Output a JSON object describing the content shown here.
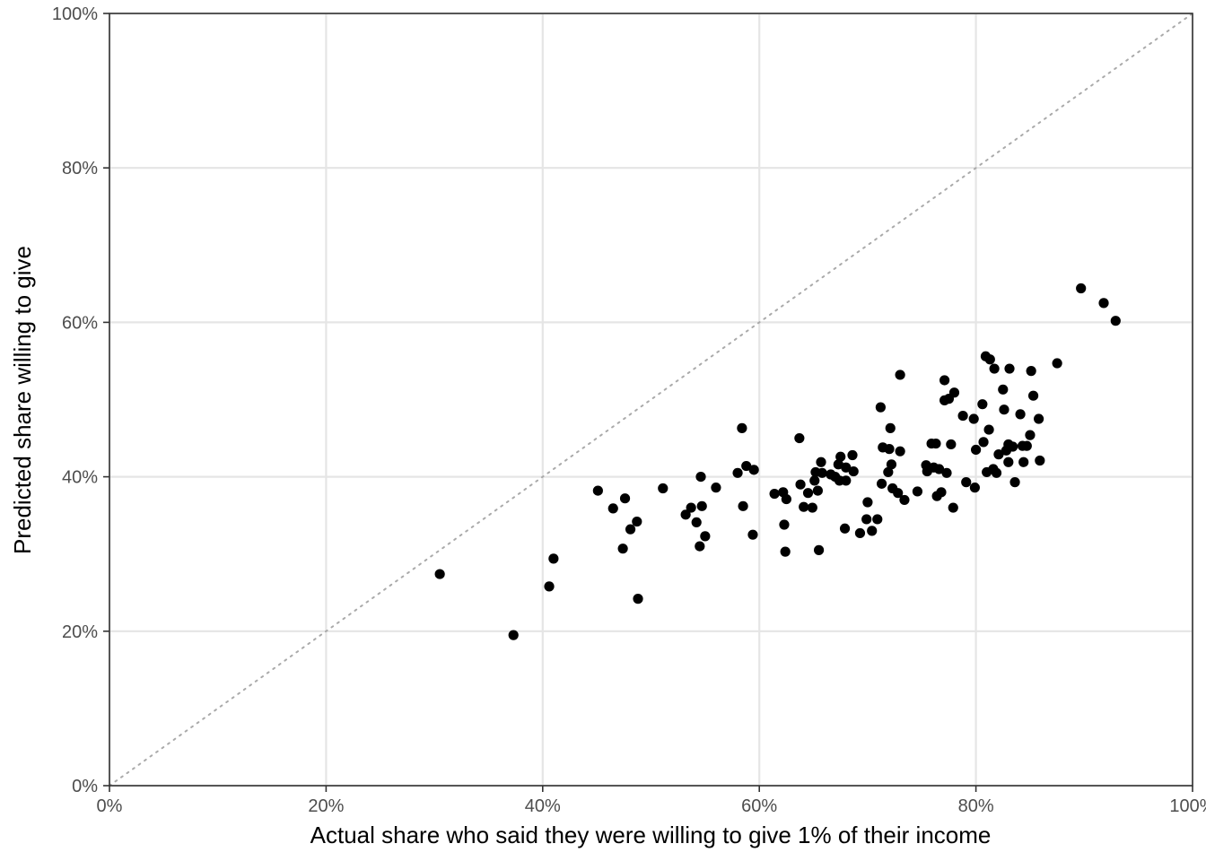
{
  "chart_data": {
    "type": "scatter",
    "xlabel": "Actual share who said they were willing to give 1% of their income",
    "ylabel": "Predicted share willing to give",
    "xlim": [
      0,
      100
    ],
    "ylim": [
      0,
      100
    ],
    "x_ticks": [
      0,
      20,
      40,
      60,
      80,
      100
    ],
    "y_ticks": [
      0,
      20,
      40,
      60,
      80,
      100
    ],
    "x_tick_labels": [
      "0%",
      "20%",
      "40%",
      "60%",
      "80%",
      "100%"
    ],
    "y_tick_labels": [
      "0%",
      "20%",
      "40%",
      "60%",
      "80%",
      "100%"
    ],
    "grid": true,
    "reference_line": {
      "type": "identity",
      "style": "dotted",
      "color": "#aaaaaa"
    },
    "point_color": "#000000",
    "series": [
      {
        "points": [
          [
            30.5,
            27.4
          ],
          [
            37.3,
            19.5
          ],
          [
            40.6,
            25.8
          ],
          [
            41.0,
            29.4
          ],
          [
            45.1,
            38.2
          ],
          [
            46.5,
            35.9
          ],
          [
            47.4,
            30.7
          ],
          [
            47.6,
            37.2
          ],
          [
            48.1,
            33.2
          ],
          [
            48.7,
            34.2
          ],
          [
            48.8,
            24.2
          ],
          [
            51.1,
            38.5
          ],
          [
            53.2,
            35.1
          ],
          [
            53.7,
            36.0
          ],
          [
            54.2,
            34.1
          ],
          [
            54.5,
            31.0
          ],
          [
            54.6,
            40.0
          ],
          [
            54.7,
            36.2
          ],
          [
            55.0,
            32.3
          ],
          [
            56.0,
            38.6
          ],
          [
            58.0,
            40.5
          ],
          [
            58.4,
            46.3
          ],
          [
            58.5,
            36.2
          ],
          [
            58.8,
            41.4
          ],
          [
            59.4,
            32.5
          ],
          [
            59.5,
            40.9
          ],
          [
            61.4,
            37.8
          ],
          [
            62.2,
            38.0
          ],
          [
            62.3,
            33.8
          ],
          [
            62.4,
            30.3
          ],
          [
            62.5,
            37.1
          ],
          [
            63.7,
            45.0
          ],
          [
            63.8,
            39.0
          ],
          [
            64.1,
            36.1
          ],
          [
            64.5,
            37.9
          ],
          [
            64.9,
            36.0
          ],
          [
            65.1,
            39.5
          ],
          [
            65.2,
            40.6
          ],
          [
            65.4,
            38.2
          ],
          [
            65.5,
            30.5
          ],
          [
            65.7,
            41.9
          ],
          [
            65.8,
            40.5
          ],
          [
            66.6,
            40.3
          ],
          [
            67.0,
            40.0
          ],
          [
            67.3,
            41.6
          ],
          [
            67.4,
            39.5
          ],
          [
            67.5,
            42.6
          ],
          [
            67.9,
            33.3
          ],
          [
            68.0,
            41.2
          ],
          [
            68.0,
            39.5
          ],
          [
            68.6,
            42.8
          ],
          [
            68.7,
            40.7
          ],
          [
            69.3,
            32.7
          ],
          [
            69.9,
            34.5
          ],
          [
            70.0,
            36.7
          ],
          [
            70.4,
            33.0
          ],
          [
            70.9,
            34.5
          ],
          [
            71.2,
            49.0
          ],
          [
            71.3,
            39.1
          ],
          [
            71.4,
            43.8
          ],
          [
            71.9,
            40.6
          ],
          [
            72.0,
            43.6
          ],
          [
            72.1,
            46.3
          ],
          [
            72.2,
            41.6
          ],
          [
            72.3,
            38.5
          ],
          [
            72.8,
            37.9
          ],
          [
            73.0,
            53.2
          ],
          [
            73.0,
            43.3
          ],
          [
            73.4,
            37.0
          ],
          [
            74.6,
            38.1
          ],
          [
            75.4,
            41.5
          ],
          [
            75.5,
            40.7
          ],
          [
            75.9,
            44.3
          ],
          [
            76.1,
            41.2
          ],
          [
            76.3,
            44.3
          ],
          [
            76.4,
            37.5
          ],
          [
            76.6,
            41.0
          ],
          [
            76.8,
            38.0
          ],
          [
            77.1,
            52.5
          ],
          [
            77.1,
            49.9
          ],
          [
            77.3,
            40.5
          ],
          [
            77.5,
            50.1
          ],
          [
            77.7,
            44.2
          ],
          [
            77.9,
            36.0
          ],
          [
            78.0,
            50.9
          ],
          [
            78.8,
            47.9
          ],
          [
            79.1,
            39.3
          ],
          [
            79.8,
            47.5
          ],
          [
            79.9,
            38.6
          ],
          [
            80.0,
            43.5
          ],
          [
            80.6,
            49.4
          ],
          [
            80.7,
            44.5
          ],
          [
            80.9,
            55.6
          ],
          [
            81.0,
            40.6
          ],
          [
            81.2,
            46.1
          ],
          [
            81.3,
            55.2
          ],
          [
            81.6,
            41.0
          ],
          [
            81.7,
            54.0
          ],
          [
            81.9,
            40.5
          ],
          [
            82.1,
            42.9
          ],
          [
            82.5,
            51.3
          ],
          [
            82.6,
            48.7
          ],
          [
            82.8,
            43.4
          ],
          [
            83.0,
            44.2
          ],
          [
            83.0,
            41.9
          ],
          [
            83.1,
            54.0
          ],
          [
            83.4,
            43.9
          ],
          [
            83.6,
            39.3
          ],
          [
            84.1,
            48.1
          ],
          [
            84.3,
            44.0
          ],
          [
            84.4,
            41.9
          ],
          [
            84.7,
            44.0
          ],
          [
            85.0,
            45.4
          ],
          [
            85.1,
            53.7
          ],
          [
            85.3,
            50.5
          ],
          [
            85.8,
            47.5
          ],
          [
            85.9,
            42.1
          ],
          [
            87.5,
            54.7
          ],
          [
            89.7,
            64.4
          ],
          [
            91.8,
            62.5
          ],
          [
            92.9,
            60.2
          ]
        ]
      }
    ]
  }
}
